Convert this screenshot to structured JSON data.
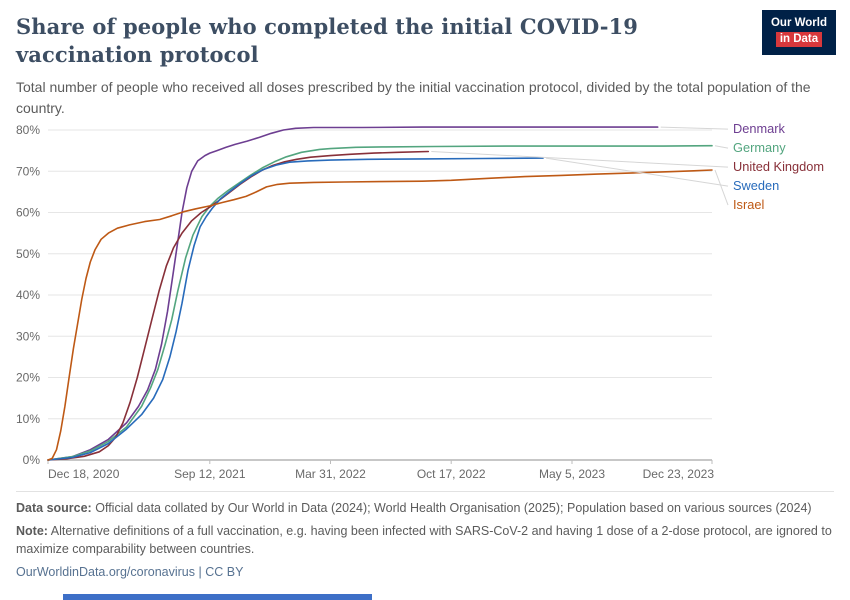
{
  "logo": {
    "line1": "Our World",
    "line2": "in Data"
  },
  "header": {
    "title": "Share of people who completed the initial COVID-19 vaccination protocol",
    "subtitle": "Total number of people who received all doses prescribed by the initial vaccination protocol, divided by the total population of the country."
  },
  "footer": {
    "data_source_label": "Data source:",
    "data_source_text": "Official data collated by Our World in Data (2024); World Health Organisation (2025); Population based on various sources (2024)",
    "note_label": "Note:",
    "note_text": "Alternative definitions of a full vaccination, e.g. having been infected with SARS-CoV-2 and having 1 dose of a 2-dose protocol, are ignored to maximize comparability between countries.",
    "link": "OurWorldinData.org/coronavirus | CC BY"
  },
  "chart_data": {
    "type": "line",
    "title": "Share of people who completed the initial COVID-19 vaccination protocol",
    "grid": true,
    "legend_position": "right",
    "x_axis": {
      "tick_labels": [
        "Dec 18, 2020",
        "Sep 12, 2021",
        "Mar 31, 2022",
        "Oct 17, 2022",
        "May 5, 2023",
        "Dec 23, 2023"
      ],
      "tick_days": [
        0,
        268,
        468,
        668,
        868,
        1100
      ],
      "range_days": [
        0,
        1100
      ]
    },
    "y_axis": {
      "tick_labels": [
        "0%",
        "10%",
        "20%",
        "30%",
        "40%",
        "50%",
        "60%",
        "70%",
        "80%"
      ],
      "tick_values": [
        0,
        10,
        20,
        30,
        40,
        50,
        60,
        70,
        80
      ],
      "min": 0,
      "max": 80,
      "unit": "%"
    },
    "series": [
      {
        "name": "Denmark",
        "color": "#6D3E91",
        "points": [
          [
            0,
            0
          ],
          [
            40,
            0.8
          ],
          [
            70,
            2.5
          ],
          [
            100,
            5
          ],
          [
            130,
            9
          ],
          [
            150,
            13
          ],
          [
            165,
            17
          ],
          [
            178,
            22
          ],
          [
            188,
            28
          ],
          [
            198,
            36
          ],
          [
            207,
            45
          ],
          [
            215,
            53
          ],
          [
            222,
            60
          ],
          [
            230,
            66
          ],
          [
            238,
            70
          ],
          [
            248,
            72.5
          ],
          [
            260,
            73.8
          ],
          [
            268,
            74.4
          ],
          [
            280,
            75
          ],
          [
            295,
            75.8
          ],
          [
            310,
            76.5
          ],
          [
            330,
            77.3
          ],
          [
            350,
            78.2
          ],
          [
            370,
            79.2
          ],
          [
            390,
            80
          ],
          [
            410,
            80.4
          ],
          [
            440,
            80.6
          ],
          [
            520,
            80.6
          ],
          [
            620,
            80.7
          ],
          [
            760,
            80.7
          ],
          [
            900,
            80.7
          ],
          [
            1010,
            80.7
          ]
        ]
      },
      {
        "name": "Germany",
        "color": "#53A57F",
        "points": [
          [
            0,
            0
          ],
          [
            40,
            0.8
          ],
          [
            70,
            2.2
          ],
          [
            100,
            4.5
          ],
          [
            130,
            8
          ],
          [
            155,
            13
          ],
          [
            170,
            17.5
          ],
          [
            182,
            22
          ],
          [
            194,
            28
          ],
          [
            205,
            34
          ],
          [
            215,
            41
          ],
          [
            228,
            49
          ],
          [
            240,
            54.5
          ],
          [
            255,
            59
          ],
          [
            268,
            61.5
          ],
          [
            282,
            63.5
          ],
          [
            298,
            65.3
          ],
          [
            315,
            67
          ],
          [
            335,
            69
          ],
          [
            355,
            70.8
          ],
          [
            375,
            72.3
          ],
          [
            395,
            73.5
          ],
          [
            420,
            74.6
          ],
          [
            450,
            75.3
          ],
          [
            468,
            75.5
          ],
          [
            510,
            75.8
          ],
          [
            560,
            75.9
          ],
          [
            640,
            76
          ],
          [
            760,
            76.1
          ],
          [
            900,
            76.1
          ],
          [
            1020,
            76.1
          ],
          [
            1100,
            76.2
          ]
        ]
      },
      {
        "name": "United Kingdom",
        "color": "#883039",
        "points": [
          [
            0,
            0
          ],
          [
            30,
            0.3
          ],
          [
            60,
            0.9
          ],
          [
            85,
            2
          ],
          [
            100,
            3.5
          ],
          [
            112,
            5.5
          ],
          [
            124,
            9
          ],
          [
            136,
            14
          ],
          [
            148,
            20
          ],
          [
            160,
            27
          ],
          [
            172,
            34
          ],
          [
            184,
            41
          ],
          [
            196,
            47
          ],
          [
            208,
            51.5
          ],
          [
            222,
            55
          ],
          [
            238,
            58
          ],
          [
            254,
            60
          ],
          [
            268,
            61.3
          ],
          [
            284,
            63
          ],
          [
            300,
            64.8
          ],
          [
            318,
            66.8
          ],
          [
            336,
            68.6
          ],
          [
            354,
            70.2
          ],
          [
            372,
            71.4
          ],
          [
            392,
            72.3
          ],
          [
            412,
            72.9
          ],
          [
            435,
            73.4
          ],
          [
            468,
            73.8
          ],
          [
            500,
            74.1
          ],
          [
            540,
            74.4
          ],
          [
            580,
            74.6
          ],
          [
            630,
            74.8
          ]
        ]
      },
      {
        "name": "Sweden",
        "color": "#286BBB",
        "points": [
          [
            0,
            0
          ],
          [
            40,
            0.6
          ],
          [
            70,
            1.8
          ],
          [
            100,
            4
          ],
          [
            130,
            7.5
          ],
          [
            155,
            11
          ],
          [
            175,
            15
          ],
          [
            190,
            19.5
          ],
          [
            202,
            25
          ],
          [
            212,
            31
          ],
          [
            222,
            38
          ],
          [
            232,
            46
          ],
          [
            242,
            52
          ],
          [
            252,
            56.5
          ],
          [
            262,
            59
          ],
          [
            272,
            61
          ],
          [
            285,
            63.2
          ],
          [
            300,
            65
          ],
          [
            318,
            67
          ],
          [
            338,
            69
          ],
          [
            358,
            70.5
          ],
          [
            378,
            71.5
          ],
          [
            400,
            72.2
          ],
          [
            430,
            72.5
          ],
          [
            468,
            72.7
          ],
          [
            530,
            72.9
          ],
          [
            620,
            73
          ],
          [
            720,
            73.1
          ],
          [
            820,
            73.2
          ]
        ]
      },
      {
        "name": "Israel",
        "color": "#BE5915",
        "points": [
          [
            0,
            0
          ],
          [
            7,
            0.4
          ],
          [
            14,
            2.5
          ],
          [
            21,
            7
          ],
          [
            28,
            13
          ],
          [
            35,
            20
          ],
          [
            42,
            27
          ],
          [
            49,
            33
          ],
          [
            56,
            39
          ],
          [
            63,
            44
          ],
          [
            70,
            48
          ],
          [
            78,
            51
          ],
          [
            88,
            53.5
          ],
          [
            100,
            55
          ],
          [
            115,
            56.2
          ],
          [
            135,
            57
          ],
          [
            160,
            57.8
          ],
          [
            185,
            58.3
          ],
          [
            205,
            59.2
          ],
          [
            225,
            60.2
          ],
          [
            245,
            60.9
          ],
          [
            268,
            61.6
          ],
          [
            288,
            62.4
          ],
          [
            308,
            63.1
          ],
          [
            328,
            63.9
          ],
          [
            345,
            65
          ],
          [
            362,
            66.2
          ],
          [
            380,
            66.8
          ],
          [
            400,
            67.1
          ],
          [
            440,
            67.3
          ],
          [
            490,
            67.4
          ],
          [
            550,
            67.5
          ],
          [
            620,
            67.6
          ],
          [
            668,
            67.8
          ],
          [
            730,
            68.3
          ],
          [
            790,
            68.7
          ],
          [
            850,
            69
          ],
          [
            910,
            69.3
          ],
          [
            970,
            69.6
          ],
          [
            1030,
            69.9
          ],
          [
            1070,
            70.1
          ],
          [
            1100,
            70.3
          ]
        ]
      }
    ]
  }
}
